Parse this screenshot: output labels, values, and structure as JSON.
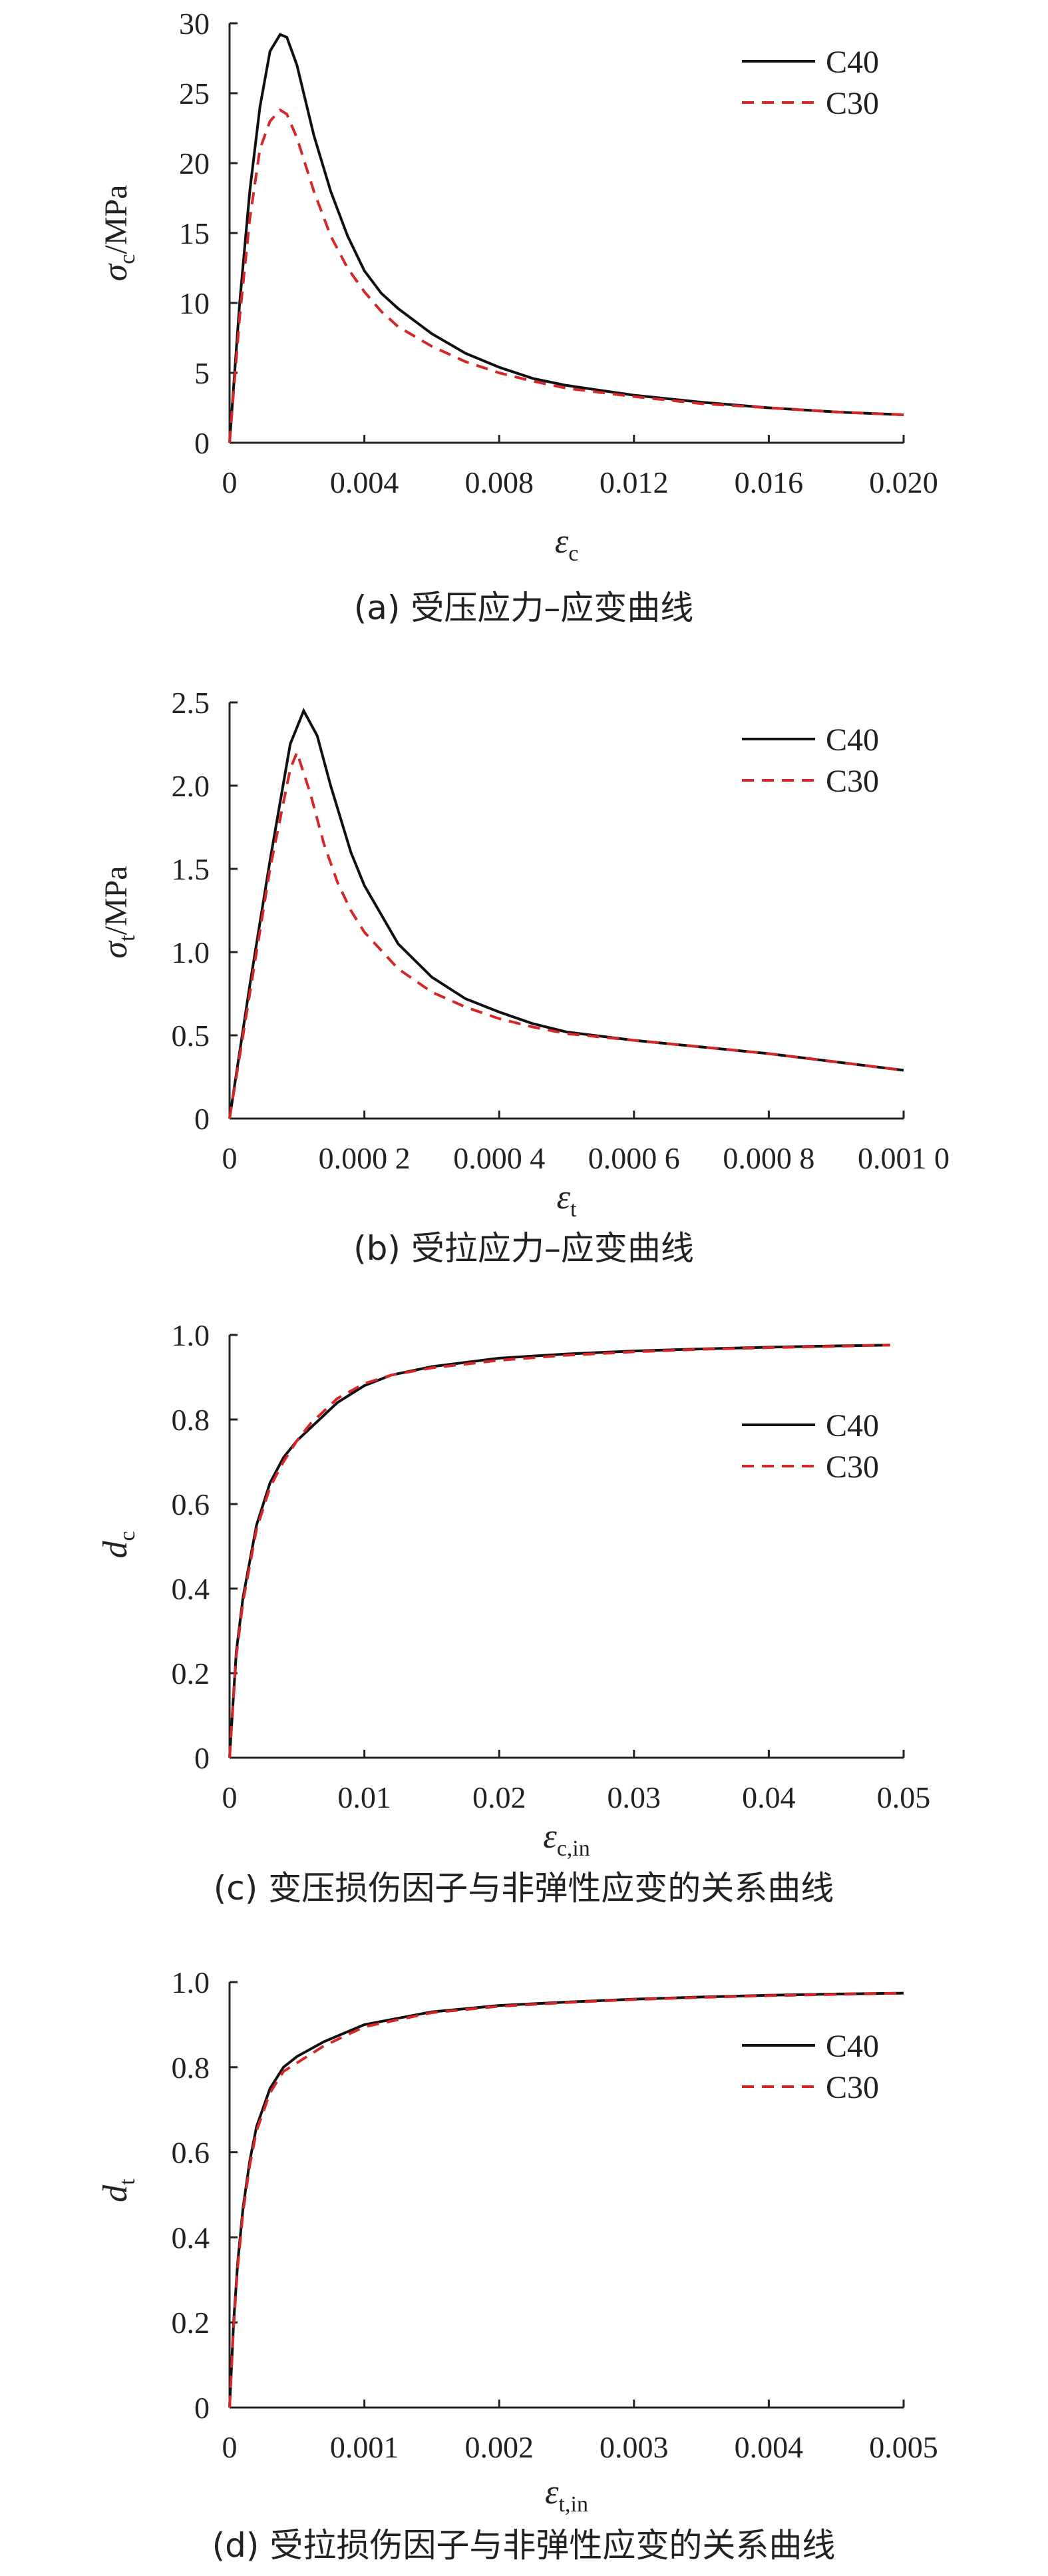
{
  "chart_data": [
    {
      "type": "line",
      "caption": "(a) 受压应力–应变曲线",
      "ylabel": {
        "symbol": "σ",
        "sub": "c",
        "unit": "/MPa"
      },
      "xlabel": {
        "symbol": "ε",
        "sub": "c"
      },
      "xlim": [
        0,
        0.02
      ],
      "ylim": [
        0,
        30
      ],
      "xticks": [
        0,
        0.004,
        0.008,
        0.012,
        0.016,
        0.02
      ],
      "xtick_labels": [
        "0",
        "0.004",
        "0.008",
        "0.012",
        "0.016",
        "0.020"
      ],
      "yticks": [
        0,
        5,
        10,
        15,
        20,
        25,
        30
      ],
      "ytick_labels": [
        "0",
        "5",
        "10",
        "15",
        "20",
        "25",
        "30"
      ],
      "grid": false,
      "legend": "top-right",
      "series": [
        {
          "name": "C40",
          "color": "#111111",
          "style": "solid",
          "x": [
            0,
            0.0003,
            0.0006,
            0.0009,
            0.0012,
            0.0015,
            0.0017,
            0.002,
            0.0025,
            0.003,
            0.0035,
            0.004,
            0.0045,
            0.005,
            0.006,
            0.007,
            0.008,
            0.009,
            0.01,
            0.012,
            0.014,
            0.016,
            0.018,
            0.02
          ],
          "y": [
            0,
            10,
            18,
            24,
            28,
            29.2,
            29.0,
            27.0,
            22.0,
            18.0,
            14.8,
            12.3,
            10.7,
            9.6,
            7.8,
            6.4,
            5.4,
            4.6,
            4.1,
            3.4,
            2.9,
            2.5,
            2.2,
            2.0
          ]
        },
        {
          "name": "C30",
          "color": "#d62728",
          "style": "dashed",
          "x": [
            0,
            0.0003,
            0.0006,
            0.0009,
            0.0012,
            0.0015,
            0.0017,
            0.002,
            0.0025,
            0.003,
            0.0035,
            0.004,
            0.0045,
            0.005,
            0.006,
            0.007,
            0.008,
            0.009,
            0.01,
            0.012,
            0.014,
            0.016,
            0.018,
            0.02
          ],
          "y": [
            0,
            9,
            16,
            21,
            23,
            23.8,
            23.5,
            21.8,
            18.0,
            14.8,
            12.5,
            10.8,
            9.4,
            8.3,
            6.9,
            5.8,
            5.0,
            4.4,
            3.9,
            3.3,
            2.8,
            2.5,
            2.2,
            2.0
          ]
        }
      ]
    },
    {
      "type": "line",
      "caption": "(b) 受拉应力–应变曲线",
      "ylabel": {
        "symbol": "σ",
        "sub": "t",
        "unit": "/MPa"
      },
      "xlabel": {
        "symbol": "ε",
        "sub": "t"
      },
      "xlim": [
        0,
        0.001
      ],
      "ylim": [
        0,
        2.5
      ],
      "xticks": [
        0,
        0.0002,
        0.0004,
        0.0006,
        0.0008,
        0.001
      ],
      "xtick_labels": [
        "0",
        "0.000 2",
        "0.000 4",
        "0.000 6",
        "0.000 8",
        "0.001 0"
      ],
      "yticks": [
        0,
        0.5,
        1.0,
        1.5,
        2.0,
        2.5
      ],
      "ytick_labels": [
        "0",
        "0.5",
        "1.0",
        "1.5",
        "2.0",
        "2.5"
      ],
      "grid": false,
      "legend": "top-right",
      "series": [
        {
          "name": "C40",
          "color": "#111111",
          "style": "solid",
          "x": [
            0,
            3e-05,
            6e-05,
            9e-05,
            0.00011,
            0.00013,
            0.00015,
            0.00018,
            0.0002,
            0.00025,
            0.0003,
            0.00035,
            0.0004,
            0.00045,
            0.0005,
            0.0006,
            0.0007,
            0.0008,
            0.0009,
            0.001
          ],
          "y": [
            0,
            0.8,
            1.55,
            2.25,
            2.45,
            2.3,
            2.0,
            1.6,
            1.4,
            1.05,
            0.85,
            0.72,
            0.64,
            0.57,
            0.52,
            0.47,
            0.43,
            0.39,
            0.34,
            0.29
          ]
        },
        {
          "name": "C30",
          "color": "#d62728",
          "style": "dashed",
          "x": [
            0,
            3e-05,
            6e-05,
            9e-05,
            0.0001,
            0.00012,
            0.00014,
            0.00016,
            0.00018,
            0.0002,
            0.00025,
            0.0003,
            0.00035,
            0.0004,
            0.00045,
            0.0005,
            0.0006,
            0.0007,
            0.0008,
            0.0009,
            0.001
          ],
          "y": [
            0,
            0.75,
            1.5,
            2.1,
            2.2,
            1.95,
            1.65,
            1.42,
            1.25,
            1.12,
            0.9,
            0.76,
            0.67,
            0.6,
            0.55,
            0.51,
            0.47,
            0.43,
            0.39,
            0.34,
            0.29
          ]
        }
      ]
    },
    {
      "type": "line",
      "caption": "(c) 变压损伤因子与非弹性应变的关系曲线",
      "ylabel": {
        "symbol": "d",
        "sub": "c",
        "unit": ""
      },
      "xlabel": {
        "symbol": "ε",
        "sub": "c,in"
      },
      "xlim": [
        0,
        0.05
      ],
      "ylim": [
        0,
        1.0
      ],
      "xticks": [
        0,
        0.01,
        0.02,
        0.03,
        0.04,
        0.05
      ],
      "xtick_labels": [
        "0",
        "0.01",
        "0.02",
        "0.03",
        "0.04",
        "0.05"
      ],
      "yticks": [
        0,
        0.2,
        0.4,
        0.6,
        0.8,
        1.0
      ],
      "ytick_labels": [
        "0",
        "0.2",
        "0.4",
        "0.6",
        "0.8",
        "1.0"
      ],
      "grid": false,
      "legend": "top-right",
      "series": [
        {
          "name": "C40",
          "color": "#111111",
          "style": "solid",
          "x": [
            0,
            0.0005,
            0.001,
            0.002,
            0.003,
            0.004,
            0.005,
            0.006,
            0.008,
            0.01,
            0.012,
            0.015,
            0.02,
            0.025,
            0.03,
            0.035,
            0.04,
            0.045,
            0.049
          ],
          "y": [
            0,
            0.25,
            0.38,
            0.55,
            0.65,
            0.71,
            0.75,
            0.78,
            0.84,
            0.88,
            0.905,
            0.925,
            0.945,
            0.955,
            0.962,
            0.967,
            0.971,
            0.974,
            0.976
          ]
        },
        {
          "name": "C30",
          "color": "#d62728",
          "style": "dashed",
          "x": [
            0,
            0.0005,
            0.001,
            0.002,
            0.003,
            0.004,
            0.005,
            0.006,
            0.008,
            0.01,
            0.012,
            0.015,
            0.02,
            0.025,
            0.03,
            0.035,
            0.04,
            0.045,
            0.049
          ],
          "y": [
            0,
            0.24,
            0.37,
            0.54,
            0.64,
            0.7,
            0.75,
            0.79,
            0.85,
            0.885,
            0.905,
            0.922,
            0.94,
            0.952,
            0.96,
            0.966,
            0.97,
            0.973,
            0.976
          ]
        }
      ]
    },
    {
      "type": "line",
      "caption": "(d) 受拉损伤因子与非弹性应变的关系曲线",
      "ylabel": {
        "symbol": "d",
        "sub": "t",
        "unit": ""
      },
      "xlabel": {
        "symbol": "ε",
        "sub": "t,in"
      },
      "xlim": [
        0,
        0.005
      ],
      "ylim": [
        0,
        1.0
      ],
      "xticks": [
        0,
        0.001,
        0.002,
        0.003,
        0.004,
        0.005
      ],
      "xtick_labels": [
        "0",
        "0.001",
        "0.002",
        "0.003",
        "0.004",
        "0.005"
      ],
      "yticks": [
        0,
        0.2,
        0.4,
        0.6,
        0.8,
        1.0
      ],
      "ytick_labels": [
        "0",
        "0.2",
        "0.4",
        "0.6",
        "0.8",
        "1.0"
      ],
      "grid": false,
      "legend": "top-right",
      "series": [
        {
          "name": "C40",
          "color": "#111111",
          "style": "solid",
          "x": [
            0,
            3e-05,
            6e-05,
            0.0001,
            0.00015,
            0.0002,
            0.0003,
            0.0004,
            0.0005,
            0.0007,
            0.001,
            0.0015,
            0.002,
            0.0025,
            0.003,
            0.0035,
            0.004,
            0.0045,
            0.005
          ],
          "y": [
            0,
            0.2,
            0.34,
            0.47,
            0.58,
            0.66,
            0.75,
            0.8,
            0.825,
            0.86,
            0.9,
            0.93,
            0.945,
            0.953,
            0.96,
            0.965,
            0.969,
            0.972,
            0.974
          ]
        },
        {
          "name": "C30",
          "color": "#d62728",
          "style": "dashed",
          "x": [
            0,
            3e-05,
            6e-05,
            0.0001,
            0.00015,
            0.0002,
            0.0003,
            0.0004,
            0.0005,
            0.0007,
            0.001,
            0.0015,
            0.002,
            0.0025,
            0.003,
            0.0035,
            0.004,
            0.0045,
            0.005
          ],
          "y": [
            0,
            0.19,
            0.33,
            0.46,
            0.57,
            0.65,
            0.74,
            0.79,
            0.81,
            0.85,
            0.895,
            0.928,
            0.943,
            0.952,
            0.959,
            0.964,
            0.968,
            0.971,
            0.974
          ]
        }
      ]
    }
  ]
}
